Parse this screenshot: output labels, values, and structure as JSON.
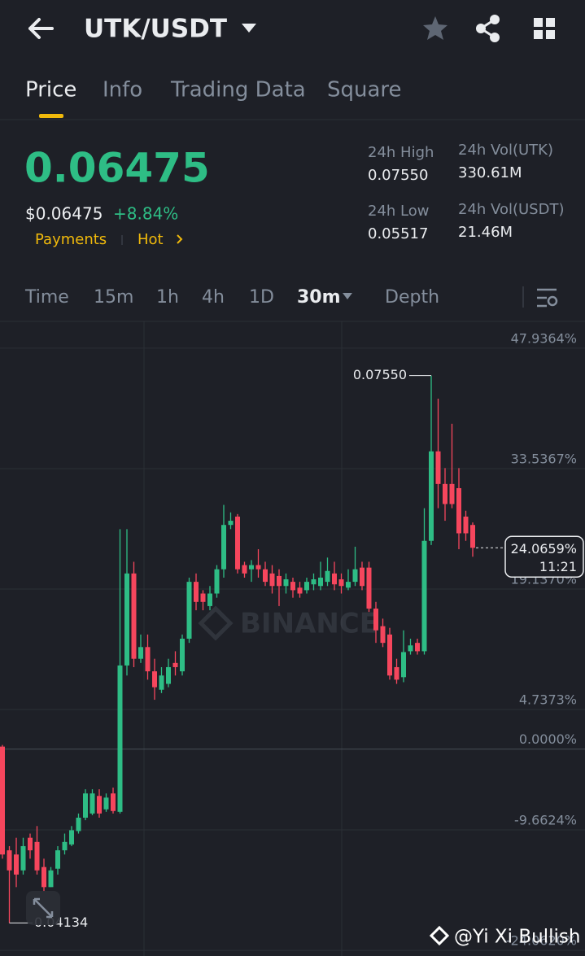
{
  "header": {
    "pair": "UTK/USDT"
  },
  "tabs": [
    "Price",
    "Info",
    "Trading Data",
    "Square"
  ],
  "ticker": {
    "last_price": "0.06475",
    "usd_price": "$0.06475",
    "change": "+8.84%",
    "tags": [
      "Payments",
      "Hot"
    ],
    "stats": [
      {
        "label": "24h High",
        "value": "0.07550"
      },
      {
        "label": "24h Vol(UTK)",
        "value": "330.61M"
      },
      {
        "label": "24h Low",
        "value": "0.05517"
      },
      {
        "label": "24h Vol(USDT)",
        "value": "21.46M"
      }
    ]
  },
  "intervals": [
    "Time",
    "15m",
    "1h",
    "4h",
    "1D",
    "30m",
    "Depth"
  ],
  "chart_data": {
    "type": "candlestick",
    "up_color": "#2ebd85",
    "down_color": "#f6465d",
    "grid": true,
    "ylim": [
      -24.25,
      51.14
    ],
    "yticks": [
      {
        "value": 47.9364,
        "label": "47.9364%"
      },
      {
        "value": 33.5367,
        "label": "33.5367%"
      },
      {
        "value": 19.137,
        "label": "19.1370%"
      },
      {
        "value": 4.7373,
        "label": "4.7373%"
      },
      {
        "value": 0,
        "label": "0.0000%"
      },
      {
        "value": -9.6624,
        "label": "-9.6624%"
      },
      {
        "value": -24.062,
        "label": "-24.0620%"
      }
    ],
    "open": [
      0.3,
      -12.1,
      -12.6,
      -14.5,
      -10.6,
      -11.1,
      -14.1,
      -16.5,
      -14.3,
      -12.1,
      -11.4,
      -9.8,
      -8.2,
      -7.7,
      -5.6,
      -7.2,
      -5.3,
      -7.5,
      10.0,
      21.0,
      10.8,
      12.2,
      9.3,
      7.1,
      7.8,
      10.3,
      9.3,
      13.2,
      20.0,
      18.6,
      17.1,
      18.6,
      21.5,
      26.8,
      27.8,
      22.0,
      21.5,
      22.0,
      21.5,
      21.0,
      20.7,
      19.5,
      20.0,
      19.3,
      19.0,
      19.7,
      19.5,
      20.0,
      21.0,
      20.3,
      19.3,
      20.0,
      21.7,
      21.7,
      16.8,
      14.7,
      13.7,
      9.8,
      8.6,
      11.7,
      12.7,
      11.7,
      24.9,
      35.6,
      31.7,
      31.7,
      31.2,
      27.8,
      26.8
    ],
    "high": [
      0.5,
      -11.6,
      -10.6,
      -10.6,
      -10.1,
      -9.2,
      -13.1,
      -14.1,
      -11.6,
      -10.1,
      -9.2,
      -7.7,
      -4.8,
      -4.8,
      -4.8,
      -5.3,
      -4.6,
      26.3,
      26.3,
      22.4,
      13.7,
      13.7,
      10.8,
      9.8,
      10.8,
      11.7,
      13.7,
      20.5,
      21.0,
      19.0,
      19.5,
      22.0,
      29.2,
      28.3,
      28.1,
      22.4,
      22.6,
      23.9,
      22.4,
      22.0,
      21.5,
      21.0,
      20.5,
      20.0,
      20.5,
      21.0,
      22.4,
      22.9,
      22.4,
      21.0,
      21.5,
      24.2,
      22.4,
      22.4,
      17.6,
      15.6,
      14.5,
      10.8,
      14.2,
      13.2,
      13.2,
      28.8,
      44.66,
      41.9,
      33.6,
      38.9,
      33.6,
      28.5,
      27.1
    ],
    "low": [
      -13.1,
      -20.79,
      -16.5,
      -15.0,
      -13.1,
      -15.0,
      -17.0,
      -16.5,
      -15.0,
      -12.6,
      -11.6,
      -10.1,
      -8.5,
      -7.9,
      -8.2,
      -7.5,
      -7.7,
      -7.7,
      8.8,
      9.8,
      10.3,
      8.3,
      5.9,
      6.7,
      7.4,
      8.8,
      8.8,
      12.7,
      16.6,
      16.6,
      16.6,
      18.1,
      20.5,
      26.3,
      21.0,
      20.5,
      20.0,
      20.5,
      19.5,
      18.6,
      17.1,
      18.6,
      18.1,
      18.1,
      18.6,
      19.0,
      19.0,
      19.5,
      19.0,
      18.6,
      19.0,
      19.5,
      19.0,
      16.4,
      12.7,
      12.2,
      8.3,
      7.8,
      8.0,
      11.3,
      11.3,
      11.3,
      24.4,
      28.8,
      27.3,
      28.8,
      23.9,
      24.9,
      23.0
    ],
    "close": [
      -12.6,
      -14.5,
      -15.0,
      -11.6,
      -12.1,
      -14.5,
      -16.5,
      -14.5,
      -12.1,
      -11.1,
      -9.7,
      -8.2,
      -5.3,
      -5.3,
      -7.7,
      -5.8,
      -7.4,
      10.0,
      21.0,
      10.8,
      12.2,
      9.3,
      7.4,
      8.8,
      9.8,
      9.8,
      13.2,
      20.0,
      17.6,
      17.6,
      18.6,
      21.5,
      26.8,
      27.3,
      21.5,
      21.0,
      22.0,
      21.5,
      20.0,
      19.5,
      19.5,
      20.3,
      19.0,
      18.6,
      20.0,
      20.3,
      20.5,
      21.3,
      19.7,
      19.5,
      20.0,
      21.5,
      19.5,
      16.8,
      14.2,
      12.7,
      8.8,
      8.3,
      11.6,
      12.4,
      11.7,
      24.9,
      35.6,
      31.7,
      29.3,
      29.3,
      25.8,
      25.8,
      24.07
    ],
    "annotations": {
      "high": "0.07550",
      "low": "0.04134",
      "watermark": "BINANCE",
      "current": "24.0659%",
      "countdown": "11:21"
    }
  },
  "footer": {
    "credit": "@Yi Xi Bullish"
  }
}
